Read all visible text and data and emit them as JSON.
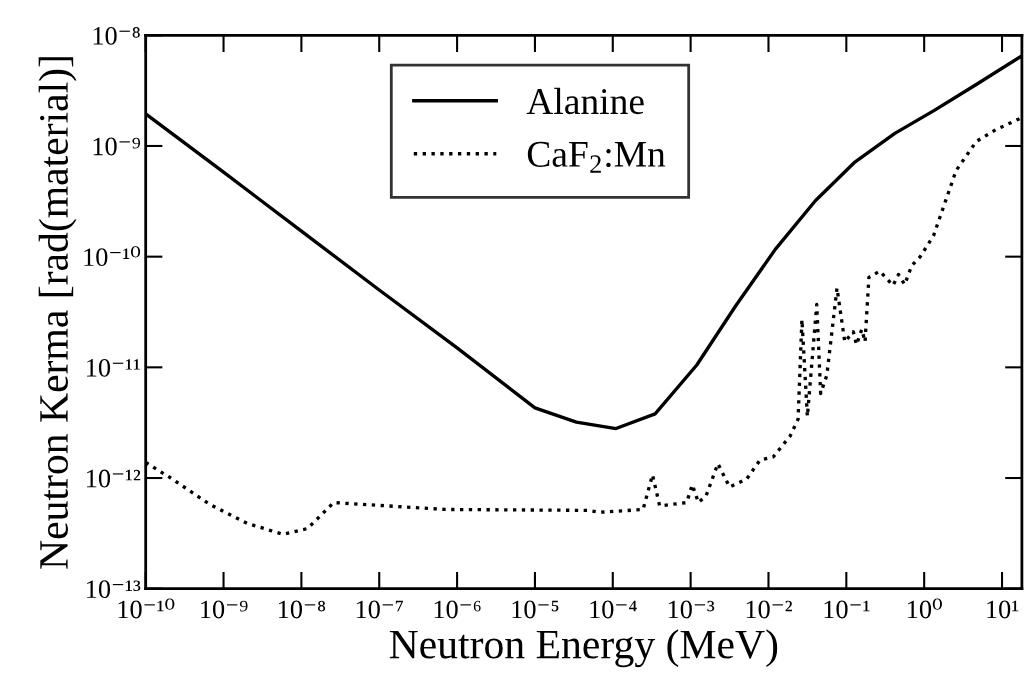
{
  "chart_data": {
    "type": "line",
    "xlabel": "Neutron Energy (MeV)",
    "ylabel": "Neutron Kerma [rad(material)]",
    "log": "xy",
    "xlim": [
      1e-10,
      18
    ],
    "ylim": [
      1e-13,
      1e-08
    ],
    "xticks": [
      {
        "value": 1e-10,
        "label": "10⁻¹⁰"
      },
      {
        "value": 1e-09,
        "label": "10⁻⁹"
      },
      {
        "value": 1e-08,
        "label": "10⁻⁸"
      },
      {
        "value": 1e-07,
        "label": "10⁻⁷"
      },
      {
        "value": 1e-06,
        "label": "10⁻⁶"
      },
      {
        "value": 1e-05,
        "label": "10⁻⁵"
      },
      {
        "value": 0.0001,
        "label": "10⁻⁴"
      },
      {
        "value": 0.001,
        "label": "10⁻³"
      },
      {
        "value": 0.01,
        "label": "10⁻²"
      },
      {
        "value": 0.1,
        "label": "10⁻¹"
      },
      {
        "value": 1,
        "label": "10⁰"
      },
      {
        "value": 10,
        "label": "10¹"
      }
    ],
    "yticks": [
      {
        "value": 1e-13,
        "label": "10⁻¹³"
      },
      {
        "value": 1e-12,
        "label": "10⁻¹²"
      },
      {
        "value": 1e-11,
        "label": "10⁻¹¹"
      },
      {
        "value": 1e-10,
        "label": "10⁻¹⁰"
      },
      {
        "value": 1e-09,
        "label": "10⁻⁹"
      },
      {
        "value": 1e-08,
        "label": "10⁻⁸"
      }
    ],
    "legend": "top",
    "grid": false,
    "series": [
      {
        "name": "Alanine",
        "color": "#000000",
        "line_style": "solid",
        "x": [
          1e-10,
          1e-09,
          1e-08,
          1e-07,
          1e-06,
          1e-05,
          3.4e-05,
          0.00011,
          0.00035,
          0.0012,
          0.0038,
          0.0123,
          0.04,
          0.13,
          0.42,
          1.35,
          4.4,
          17.8
        ],
        "values": [
          1.95e-09,
          5.8e-10,
          1.7e-10,
          5e-11,
          1.5e-11,
          4.3e-12,
          3.2e-12,
          2.8e-12,
          3.8e-12,
          1.05e-11,
          3.6e-11,
          1.17e-10,
          3.2e-10,
          7.2e-10,
          1.3e-09,
          2.1e-09,
          3.5e-09,
          6.5e-09
        ]
      },
      {
        "name": "CaF$_{2}$:Mn",
        "color": "#000000",
        "line_style": "dotted",
        "x": [
          1e-10,
          2.1e-10,
          6.6e-10,
          2e-09,
          5.8e-09,
          1.2e-08,
          2.6e-08,
          7e-07,
          4.8e-05,
          6.8e-05,
          0.000245,
          0.000324,
          0.0004,
          0.00089,
          0.00105,
          0.00126,
          0.00158,
          0.00224,
          0.00316,
          0.00525,
          0.00776,
          0.0115,
          0.019,
          0.024,
          0.0269,
          0.0316,
          0.0417,
          0.0468,
          0.0562,
          0.0759,
          0.0955,
          0.123,
          0.135,
          0.158,
          0.174,
          0.195,
          0.269,
          0.398,
          0.468,
          0.562,
          0.692,
          0.891,
          1.32,
          2.57,
          4.68,
          8.3,
          17.8
        ],
        "values": [
          1.38e-12,
          1e-12,
          5.8e-13,
          3.9e-13,
          3.1e-13,
          3.5e-13,
          6e-13,
          5.2e-13,
          5.1e-13,
          4.9e-13,
          5.2e-13,
          1.07e-12,
          5.6e-13,
          6e-13,
          8.7e-13,
          6e-13,
          6.9e-13,
          1.35e-12,
          8.3e-13,
          9.8e-13,
          1.45e-12,
          1.55e-12,
          2.4e-12,
          3.4e-12,
          2.7e-11,
          3.6e-12,
          3.7e-11,
          5.8e-12,
          8.5e-12,
          5.2e-11,
          1.7e-11,
          2.1e-11,
          1.6e-11,
          2.2e-11,
          1.7e-11,
          6.5e-11,
          7.4e-11,
          5.5e-11,
          6.9e-11,
          5.6e-11,
          8.3e-11,
          1e-10,
          1.55e-10,
          6e-10,
          1.1e-09,
          1.4e-09,
          1.8e-09
        ]
      }
    ]
  }
}
